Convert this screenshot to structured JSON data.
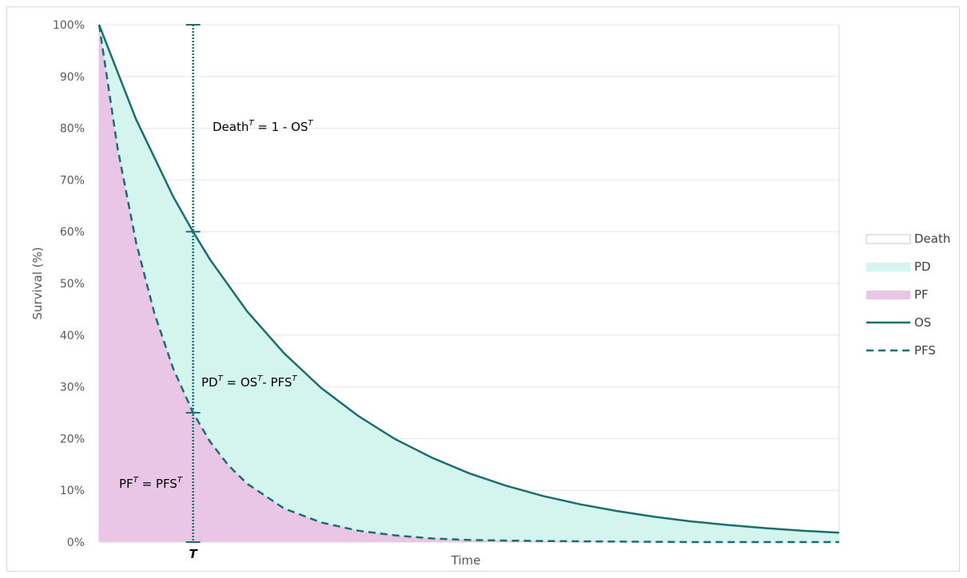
{
  "chart_data": {
    "type": "area",
    "xlabel": "Time",
    "ylabel": "Survival (%)",
    "ylim": [
      0,
      100
    ],
    "xlim": [
      0,
      1
    ],
    "y_ticks": [
      "0%",
      "10%",
      "20%",
      "30%",
      "40%",
      "50%",
      "60%",
      "70%",
      "80%",
      "90%",
      "100%"
    ],
    "x_marker_label": "T",
    "x_marker": 0.127,
    "grid": true,
    "legend_position": "right",
    "legend": [
      {
        "name": "Death",
        "kind": "area",
        "color": "#ffffff",
        "border": "#c8c8c8"
      },
      {
        "name": "PD",
        "kind": "area",
        "color": "#d4f5ee"
      },
      {
        "name": "PF",
        "kind": "area",
        "color": "#e9c6e6"
      },
      {
        "name": "OS",
        "kind": "line",
        "color": "#1a6e6e"
      },
      {
        "name": "PFS",
        "kind": "dashed",
        "color": "#1a6e6e"
      }
    ],
    "series": [
      {
        "name": "OS",
        "x": [
          0,
          0.05,
          0.1,
          0.127,
          0.15,
          0.2,
          0.25,
          0.3,
          0.35,
          0.4,
          0.45,
          0.5,
          0.55,
          0.6,
          0.65,
          0.7,
          0.75,
          0.8,
          0.85,
          0.9,
          0.95,
          1.0
        ],
        "y": [
          100,
          81.7,
          66.8,
          60.0,
          54.6,
          44.6,
          36.5,
          29.8,
          24.4,
          19.9,
          16.3,
          13.3,
          10.9,
          8.9,
          7.3,
          6.0,
          4.9,
          4.0,
          3.3,
          2.7,
          2.2,
          1.8
        ]
      },
      {
        "name": "PFS",
        "x": [
          0,
          0.025,
          0.05,
          0.075,
          0.1,
          0.127,
          0.15,
          0.175,
          0.2,
          0.25,
          0.3,
          0.35,
          0.4,
          0.45,
          0.5,
          0.55,
          0.6,
          0.7,
          0.8,
          0.9,
          1.0
        ],
        "y": [
          100,
          76.1,
          57.9,
          44.1,
          33.6,
          25.0,
          19.4,
          14.8,
          11.3,
          6.5,
          3.8,
          2.2,
          1.3,
          0.7,
          0.4,
          0.3,
          0.2,
          0.1,
          0.0,
          0.0,
          0.0
        ]
      }
    ],
    "annotations": {
      "death": {
        "base": "Death",
        "sup1": "T",
        "mid": " = 1 - OS",
        "sup2": "T"
      },
      "pd": {
        "base": "PD",
        "sup1": "T",
        "mid": " = OS",
        "sup2": "T",
        "mid2": "- PFS",
        "sup3": "T"
      },
      "pf": {
        "base": "PF",
        "sup1": "T",
        "mid": " = PFS",
        "sup2": "T"
      }
    },
    "colors": {
      "line": "#1a6e6e",
      "pd_fill": "#d4f5ee",
      "pf_fill": "#e9c6e6",
      "grid": "#e6e6e6",
      "axis": "#d9d9d9"
    }
  }
}
